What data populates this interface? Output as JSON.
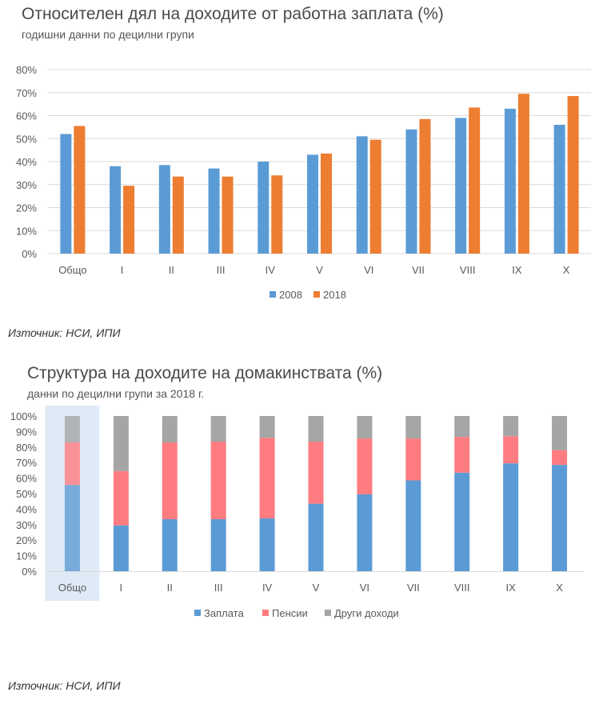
{
  "chart_data": [
    {
      "type": "bar",
      "title": "Относителен дял на доходите от работна заплата (%)",
      "subtitle": "годишни данни по децилни групи",
      "categories": [
        "Общо",
        "I",
        "II",
        "III",
        "IV",
        "V",
        "VI",
        "VII",
        "VIII",
        "IX",
        "X"
      ],
      "series": [
        {
          "name": "2008",
          "color": "#5b9bd5",
          "values": [
            52,
            38,
            38.5,
            37,
            40,
            43,
            51,
            54,
            59,
            63,
            56
          ]
        },
        {
          "name": "2018",
          "color": "#ed7d31",
          "values": [
            55.5,
            29.5,
            33.5,
            33.5,
            34,
            43.5,
            49.5,
            58.5,
            63.5,
            69.5,
            68.5
          ]
        }
      ],
      "ylim": [
        0,
        80
      ],
      "yticks": [
        "0%",
        "10%",
        "20%",
        "30%",
        "40%",
        "50%",
        "60%",
        "70%",
        "80%"
      ],
      "grid": true,
      "legend": "bottom-center",
      "source": "Източник: НСИ, ИПИ"
    },
    {
      "type": "bar",
      "stacked": true,
      "title": "Структура на доходите на домакинствата (%)",
      "subtitle": "данни по децилни групи за 2018 г.",
      "categories": [
        "Общо",
        "I",
        "II",
        "III",
        "IV",
        "V",
        "VI",
        "VII",
        "VIII",
        "IX",
        "X"
      ],
      "highlighted_category": "Общо",
      "series": [
        {
          "name": "Заплата",
          "color": "#5b9bd5",
          "values": [
            55.5,
            29.5,
            33.5,
            33.5,
            34,
            43.5,
            49.5,
            58.5,
            63.5,
            69.5,
            68.5
          ]
        },
        {
          "name": "Пенсии",
          "color": "#ff7c80",
          "values": [
            27.5,
            35,
            49.5,
            50,
            52,
            40,
            36,
            27,
            23,
            17.5,
            9.5
          ]
        },
        {
          "name": "Други доходи",
          "color": "#a5a5a5",
          "values": [
            17,
            35.5,
            17,
            16.5,
            14,
            16.5,
            14.5,
            14.5,
            13.5,
            13,
            22
          ]
        }
      ],
      "ylim": [
        0,
        100
      ],
      "yticks": [
        "0%",
        "10%",
        "20%",
        "30%",
        "40%",
        "50%",
        "60%",
        "70%",
        "80%",
        "90%",
        "100%"
      ],
      "legend": "bottom-center",
      "source": "Източник: НСИ, ИПИ"
    }
  ]
}
